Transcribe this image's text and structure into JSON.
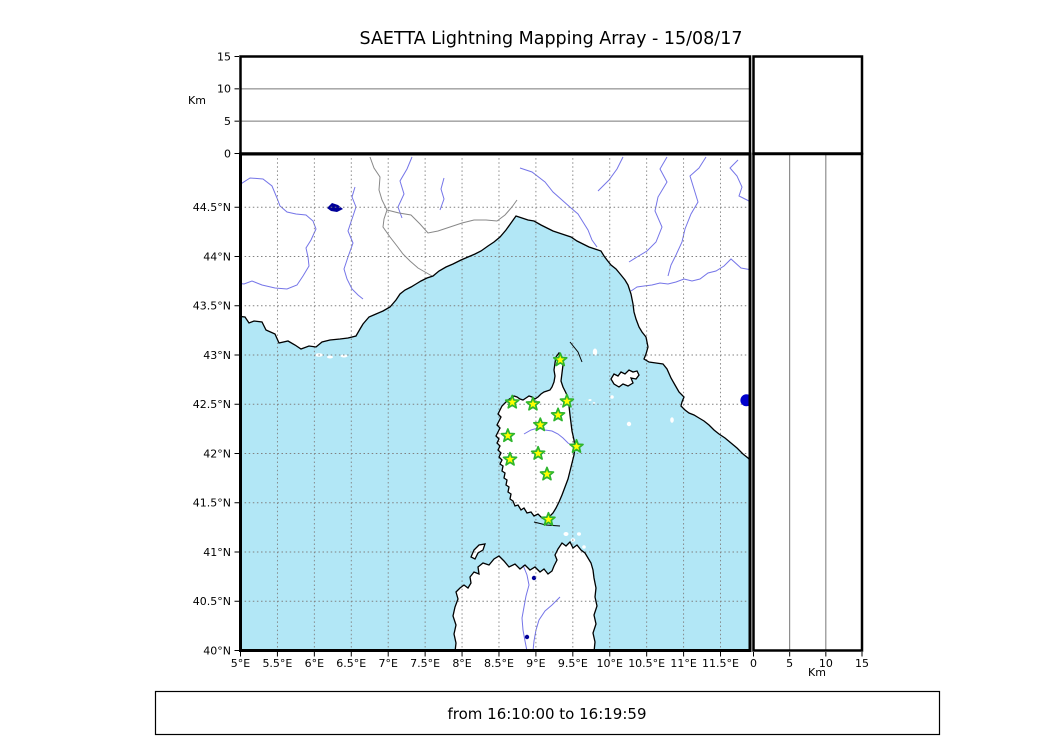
{
  "chart_data": {
    "type": "scatter",
    "title": "SAETTA Lightning Mapping Array - 15/08/17",
    "footer": "from 16:10:00 to 16:19:59",
    "map_panel": {
      "lon_range": [
        5.0,
        11.9
      ],
      "lat_range": [
        40.0,
        45.04
      ],
      "lon_tick_values": [
        5,
        5.5,
        6,
        6.5,
        7,
        7.5,
        8,
        8.5,
        9,
        9.5,
        10,
        10.5,
        11,
        11.5
      ],
      "lon_tick_labels": [
        "5°E",
        "5.5°E",
        "6°E",
        "6.5°E",
        "7°E",
        "7.5°E",
        "8°E",
        "8.5°E",
        "9°E",
        "9.5°E",
        "10°E",
        "10.5°E",
        "11°E",
        "11.5°E"
      ],
      "lat_tick_values": [
        40,
        40.5,
        41,
        41.5,
        42,
        42.5,
        43,
        43.5,
        44,
        44.5
      ],
      "lat_tick_labels": [
        "40°N",
        "40.5°N",
        "41°N",
        "41.5°N",
        "42°N",
        "42.5°N",
        "43°N",
        "43.5°N",
        "44°N",
        "44.5°N"
      ],
      "grid_step_deg": 0.5,
      "grid_style": "dotted"
    },
    "altitude_panels": {
      "label": "Km",
      "range": [
        0,
        15
      ],
      "tick_values": [
        0,
        5,
        10,
        15
      ],
      "tick_labels": [
        "0",
        "5",
        "10",
        "15"
      ],
      "gridline_values": [
        5,
        10
      ]
    },
    "stations": [
      {
        "lon": 9.33,
        "lat": 42.95
      },
      {
        "lon": 8.68,
        "lat": 42.52
      },
      {
        "lon": 8.96,
        "lat": 42.5
      },
      {
        "lon": 9.42,
        "lat": 42.53
      },
      {
        "lon": 9.3,
        "lat": 42.39
      },
      {
        "lon": 9.06,
        "lat": 42.29
      },
      {
        "lon": 8.62,
        "lat": 42.18
      },
      {
        "lon": 9.55,
        "lat": 42.07
      },
      {
        "lon": 8.65,
        "lat": 41.94
      },
      {
        "lon": 9.03,
        "lat": 42.0
      },
      {
        "lon": 9.15,
        "lat": 41.79
      },
      {
        "lon": 9.17,
        "lat": 41.33
      }
    ],
    "points": [
      {
        "lon": 11.85,
        "lat": 42.54,
        "alt_km": 0
      }
    ],
    "style": {
      "station_marker": "star",
      "station_fill": "#ffff00",
      "station_stroke": "#2db52d",
      "point_color": "#0000cc",
      "sea_color": "#b2e7f6",
      "land_color": "#ffffff",
      "river_color": "#7575e8",
      "border_color": "#888888",
      "lake_color": "#000099",
      "grid_color": "#808080"
    },
    "legend": null
  }
}
